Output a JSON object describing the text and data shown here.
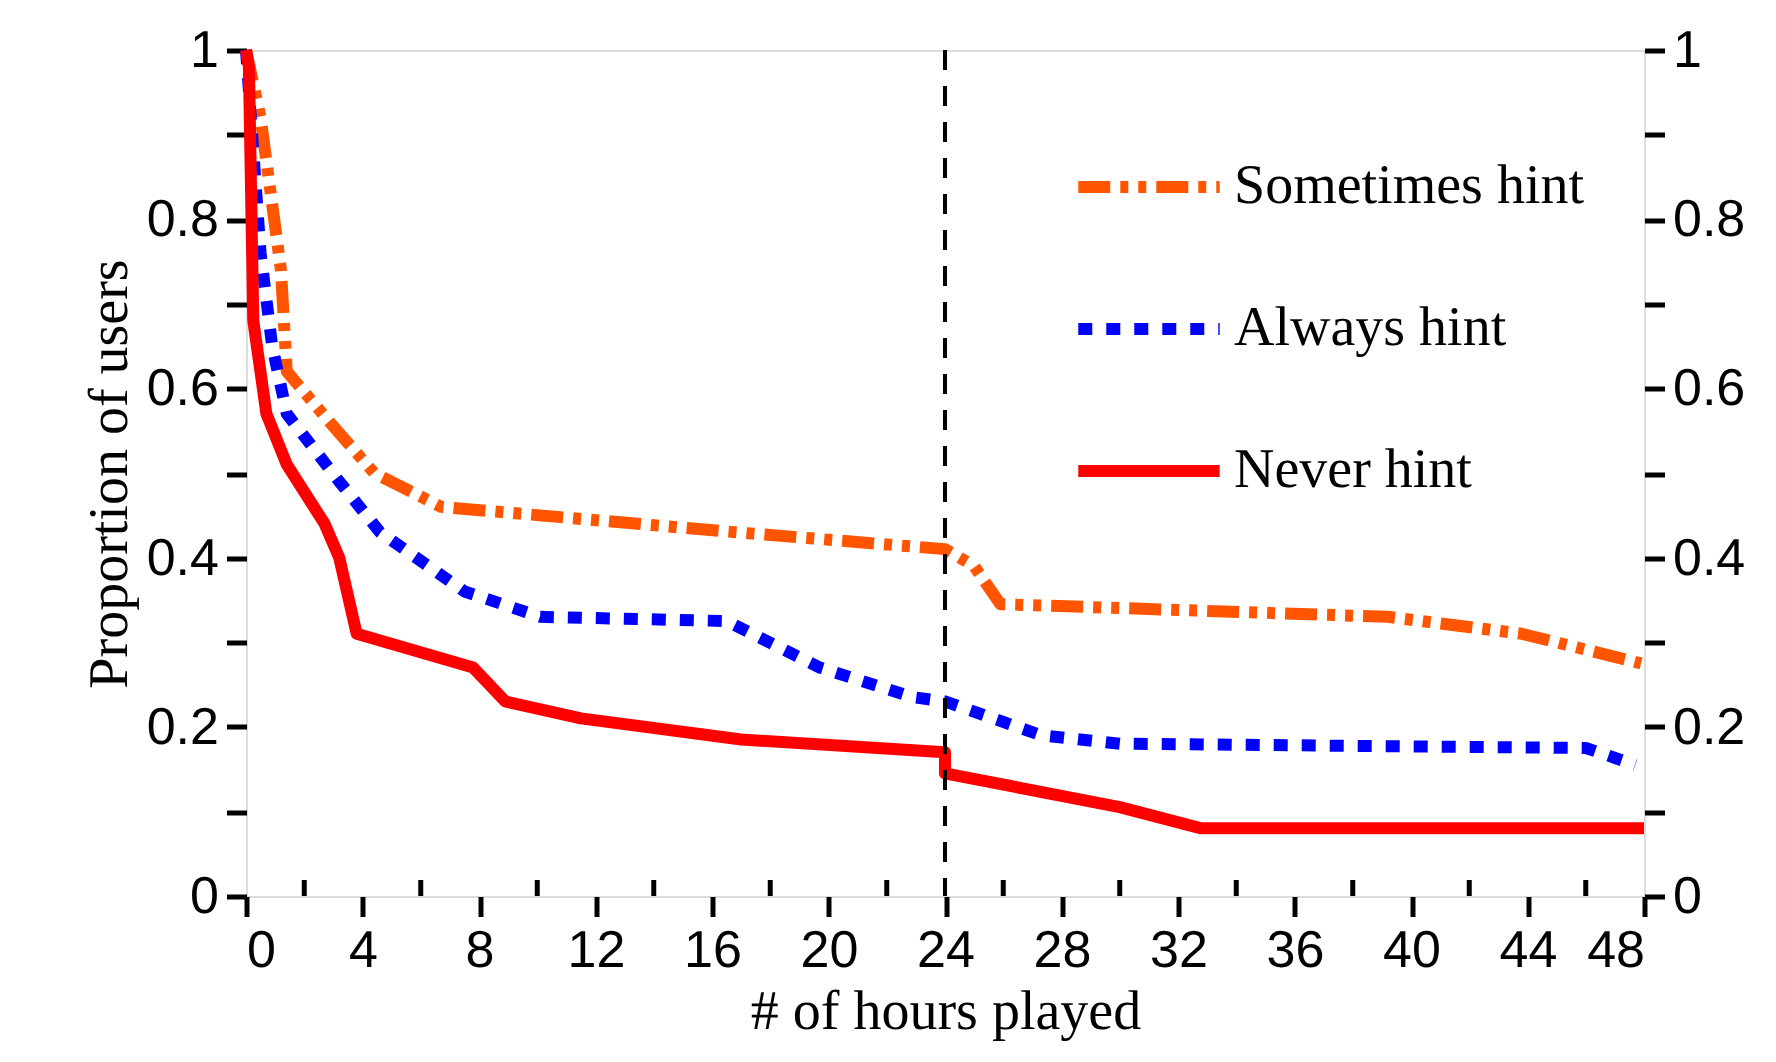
{
  "chart_data": {
    "type": "line",
    "xlabel": "# of hours played",
    "ylabel": "Proportion of users",
    "xlim": [
      0,
      48
    ],
    "ylim": [
      0,
      1
    ],
    "y2lim": [
      0,
      1
    ],
    "xticks": [
      0,
      {
        "value": 2,
        "label": null
      },
      4,
      {
        "value": 6,
        "label": null
      },
      8,
      {
        "value": 10,
        "label": null
      },
      12,
      {
        "value": 14,
        "label": null
      },
      16,
      {
        "value": 18,
        "label": null
      },
      20,
      {
        "value": 22,
        "label": null
      },
      24,
      {
        "value": 26,
        "label": null
      },
      28,
      {
        "value": 30,
        "label": null
      },
      32,
      {
        "value": 34,
        "label": null
      },
      36,
      {
        "value": 38,
        "label": null
      },
      40,
      {
        "value": 42,
        "label": null
      },
      44,
      {
        "value": 46,
        "label": null
      },
      48
    ],
    "yticks": [
      0,
      {
        "value": 0.1,
        "label": null
      },
      0.2,
      {
        "value": 0.3,
        "label": null
      },
      0.4,
      {
        "value": 0.5,
        "label": null
      },
      0.6,
      {
        "value": 0.7,
        "label": null
      },
      0.8,
      {
        "value": 0.9,
        "label": null
      },
      1
    ],
    "y2ticks": [
      0,
      {
        "value": 0.1,
        "label": null
      },
      0.2,
      {
        "value": 0.3,
        "label": null
      },
      0.4,
      {
        "value": 0.5,
        "label": null
      },
      0.6,
      {
        "value": 0.7,
        "label": null
      },
      0.8,
      {
        "value": 0.9,
        "label": null
      },
      1
    ],
    "grid": false,
    "legend": "top right",
    "marker": "none",
    "ref_lines": [
      {
        "axis": "x",
        "value": 24,
        "line_style": "dashed",
        "color": "#000000"
      }
    ],
    "series": [
      {
        "name": "Sometimes hint",
        "color": "#ff5500",
        "line_style": "dashed",
        "x": [
          0,
          0.5,
          1.2,
          1.4,
          3,
          4.4,
          6.7,
          16.8,
          24,
          25,
          25.9,
          39.2,
          43.8,
          47.9
        ],
        "values": [
          1,
          0.92,
          0.74,
          0.62,
          0.555,
          0.5,
          0.46,
          0.43,
          0.41,
          0.39,
          0.345,
          0.33,
          0.31,
          0.275
        ]
      },
      {
        "name": "Always hint",
        "color": "#0000ff",
        "line_style": "dotted",
        "x": [
          0,
          0.5,
          0.9,
          1.4,
          3.2,
          4.6,
          7.5,
          10.1,
          16.5,
          19.7,
          22.9,
          24,
          27.3,
          30,
          46,
          47.7
        ],
        "values": [
          1,
          0.76,
          0.65,
          0.57,
          0.49,
          0.43,
          0.36,
          0.33,
          0.325,
          0.27,
          0.235,
          0.23,
          0.19,
          0.18,
          0.175,
          0.155
        ]
      },
      {
        "name": "Never hint",
        "color": "#ff0000",
        "line_style": "solid",
        "x": [
          0,
          0.1,
          0.25,
          0.7,
          1.4,
          2.7,
          3.2,
          3.8,
          7.8,
          8.9,
          11.5,
          17,
          24,
          24,
          30,
          32.8,
          48
        ],
        "values": [
          1,
          0.98,
          0.68,
          0.57,
          0.51,
          0.44,
          0.4,
          0.31,
          0.27,
          0.23,
          0.21,
          0.185,
          0.17,
          0.145,
          0.105,
          0.08,
          0.08
        ]
      }
    ]
  }
}
